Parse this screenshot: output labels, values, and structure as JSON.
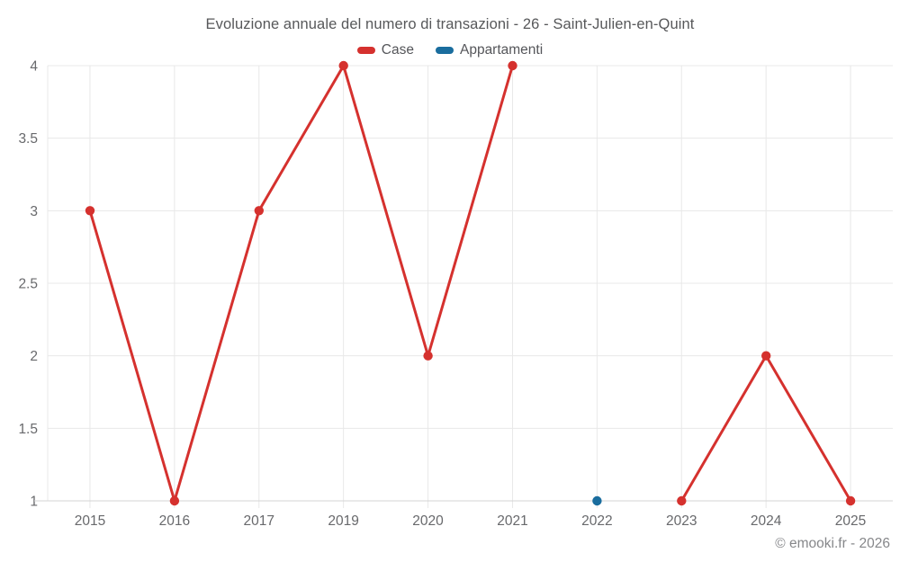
{
  "watermark": "© emooki.fr - 2026",
  "colors": {
    "case_red": "#d5312e",
    "appartamenti_blue": "#1a6d9e",
    "grid": "#e8e8e8",
    "axis": "#d4d4d4",
    "title_text": "#57585a",
    "tick_text": "#68696c",
    "watermark_text": "#86878a",
    "background": "#ffffff"
  },
  "chart_data": {
    "type": "line",
    "title": "Evoluzione annuale del numero di transazioni - 26 - Saint-Julien-en-Quint",
    "categories": [
      "2015",
      "2016",
      "2017",
      "2019",
      "2020",
      "2021",
      "2022",
      "2023",
      "2024",
      "2025"
    ],
    "series": [
      {
        "name": "Case",
        "color": "#d5312e",
        "values": [
          3,
          1,
          3,
          4,
          2,
          4,
          null,
          1,
          2,
          1
        ]
      },
      {
        "name": "Appartamenti",
        "color": "#1a6d9e",
        "values": [
          null,
          null,
          null,
          null,
          null,
          null,
          1,
          null,
          null,
          null
        ]
      }
    ],
    "xlabel": "",
    "ylabel": "",
    "ylim": [
      1,
      4
    ],
    "y_ticks": [
      4,
      3.5,
      3,
      2.5,
      2,
      1.5,
      1
    ],
    "x_axis_type": "category",
    "grid": true,
    "legend_position": "top"
  }
}
